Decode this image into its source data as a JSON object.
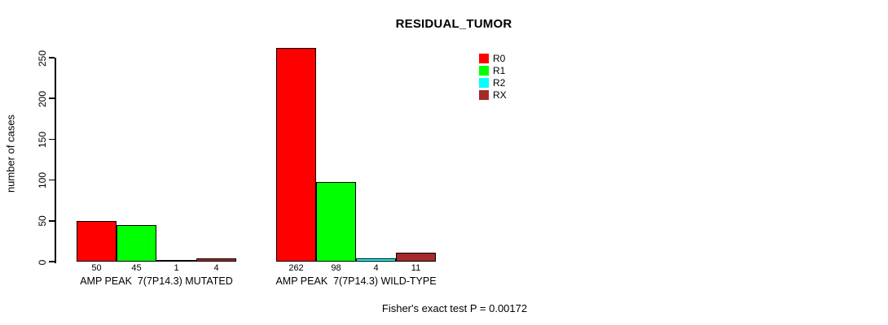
{
  "chart_data": {
    "type": "bar",
    "title": "RESIDUAL_TUMOR",
    "ylabel": "number of cases",
    "xlabel": "",
    "annotation": "Fisher's exact test P = 0.00172",
    "categories": [
      "AMP PEAK  7(7P14.3) MUTATED",
      "AMP PEAK  7(7P14.3) WILD-TYPE"
    ],
    "category_keys": [
      "mutated",
      "wild-type"
    ],
    "series": [
      {
        "name": "R0",
        "color": "#ff0000",
        "values": [
          50,
          262
        ]
      },
      {
        "name": "R1",
        "color": "#00ff00",
        "values": [
          45,
          98
        ]
      },
      {
        "name": "R2",
        "color": "#00ffff",
        "values": [
          1,
          4
        ]
      },
      {
        "name": "RX",
        "color": "#a52a2a",
        "values": [
          4,
          11
        ]
      }
    ],
    "ylim": [
      0,
      250
    ],
    "yticks": [
      0,
      50,
      100,
      150,
      200,
      250
    ],
    "legend_position": "top-right",
    "grid": false,
    "bar_border_color": "#000000",
    "background_color": "#ffffff"
  }
}
